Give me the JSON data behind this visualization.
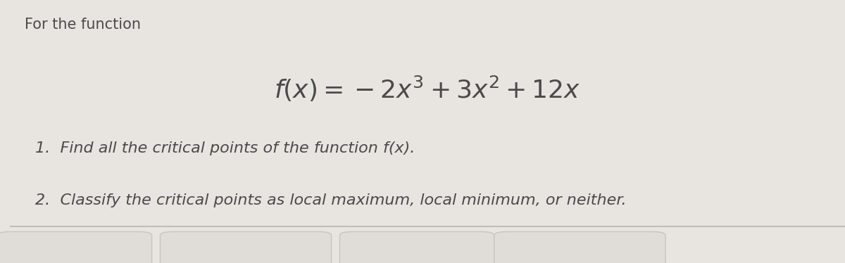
{
  "main_bg_color": "#e8e5e0",
  "text_color": "#4a4a4a",
  "header_text": "For the function",
  "formula": "$f(x) = -2x^3 + 3x^2 + 12x$",
  "item1": "1.  Find all the critical points of the function f(x).",
  "item2": "2.  Classify the critical points as local maximum, local minimum, or neither.",
  "header_fontsize": 15,
  "formula_fontsize": 26,
  "item_fontsize": 16,
  "bottom_box_color": "#e0ddd8",
  "separator_color": "#b8b4ae",
  "bottom_box_edge_color": "#c8c4be"
}
